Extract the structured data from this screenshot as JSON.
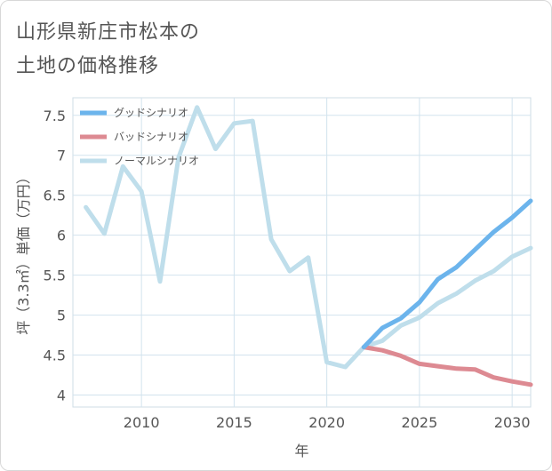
{
  "title_lines": [
    "山形県新庄市松本の",
    "土地の価格推移"
  ],
  "chart_data": {
    "type": "line",
    "title": "山形県新庄市松本の土地の価格推移",
    "xlabel": "年",
    "ylabel": "坪（3.3㎡）単価（万円）",
    "xlim": [
      2006.3,
      2031
    ],
    "ylim": [
      3.85,
      7.72
    ],
    "x_ticks": [
      2010,
      2015,
      2020,
      2025,
      2030
    ],
    "y_ticks": [
      4,
      4.5,
      5,
      5.5,
      6,
      6.5,
      7,
      7.5
    ],
    "y_tick_labels": [
      "4",
      "4.5",
      "5",
      "5.5",
      "6",
      "6.5",
      "7",
      "7.5"
    ],
    "grid": true,
    "legend_position": "top-left",
    "series": [
      {
        "name": "グッドシナリオ",
        "color": "#6cb4ec",
        "x": [
          2022,
          2023,
          2024,
          2025,
          2026,
          2027,
          2028,
          2029,
          2030,
          2031
        ],
        "values": [
          4.6,
          4.84,
          4.96,
          5.16,
          5.45,
          5.6,
          5.82,
          6.04,
          6.22,
          6.43
        ]
      },
      {
        "name": "バッドシナリオ",
        "color": "#dd8a92",
        "x": [
          2022,
          2023,
          2024,
          2025,
          2026,
          2027,
          2028,
          2029,
          2030,
          2031
        ],
        "values": [
          4.6,
          4.56,
          4.49,
          4.39,
          4.36,
          4.33,
          4.32,
          4.22,
          4.17,
          4.13
        ]
      },
      {
        "name": "ノーマルシナリオ",
        "color": "#bfdeeb",
        "x": [
          2007,
          2008,
          2009,
          2010,
          2011,
          2012,
          2013,
          2014,
          2015,
          2016,
          2017,
          2018,
          2019,
          2020,
          2021,
          2022,
          2023,
          2024,
          2025,
          2026,
          2027,
          2028,
          2029,
          2030,
          2031
        ],
        "values": [
          6.35,
          6.02,
          6.86,
          6.55,
          5.42,
          6.97,
          7.6,
          7.08,
          7.4,
          7.43,
          5.95,
          5.55,
          5.72,
          4.41,
          4.35,
          4.6,
          4.68,
          4.87,
          4.97,
          5.15,
          5.27,
          5.43,
          5.55,
          5.73,
          5.84
        ]
      }
    ]
  }
}
